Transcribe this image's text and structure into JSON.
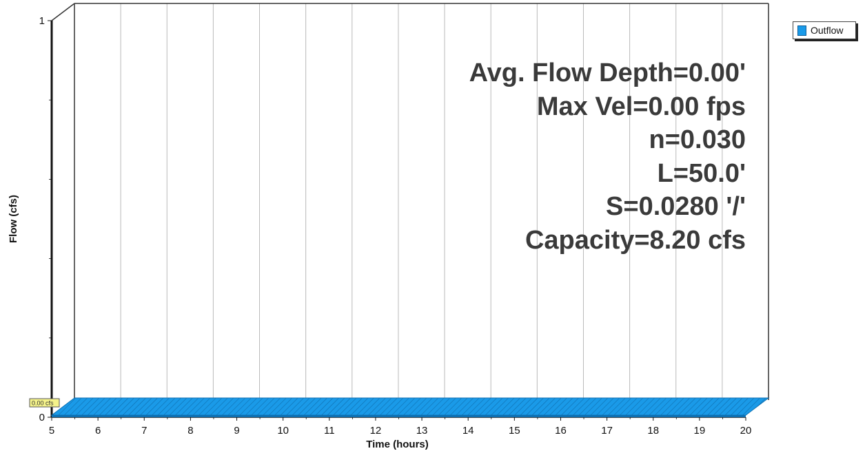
{
  "chart_data": {
    "type": "area",
    "xlabel": "Time (hours)",
    "ylabel": "Flow (cfs)",
    "xlim": [
      5,
      20
    ],
    "ylim": [
      0,
      1
    ],
    "x_ticks": [
      "5",
      "6",
      "7",
      "8",
      "9",
      "10",
      "11",
      "12",
      "13",
      "14",
      "15",
      "16",
      "17",
      "18",
      "19",
      "20"
    ],
    "y_ticks": [
      "0",
      "1"
    ],
    "grid": "vertical",
    "legend_position": "top-right",
    "series": [
      {
        "name": "Outflow",
        "color": "#1a9ae8",
        "x": [
          5,
          20
        ],
        "values": [
          0.0,
          0.0
        ]
      }
    ],
    "peak_label": "0.00 cfs",
    "annotations": [
      "Avg. Flow Depth=0.00'",
      "Max Vel=0.00 fps",
      "n=0.030",
      "L=50.0'",
      "S=0.0280 '/'",
      "Capacity=8.20 cfs"
    ]
  }
}
